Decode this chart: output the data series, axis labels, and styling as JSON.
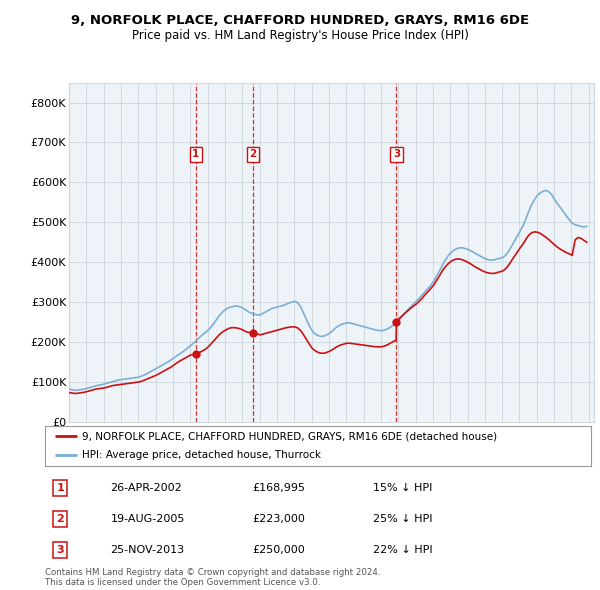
{
  "title": "9, NORFOLK PLACE, CHAFFORD HUNDRED, GRAYS, RM16 6DE",
  "subtitle": "Price paid vs. HM Land Registry's House Price Index (HPI)",
  "ylim": [
    0,
    850000
  ],
  "yticks": [
    0,
    100000,
    200000,
    300000,
    400000,
    500000,
    600000,
    700000,
    800000
  ],
  "ytick_labels": [
    "£0",
    "£100K",
    "£200K",
    "£300K",
    "£400K",
    "£500K",
    "£600K",
    "£700K",
    "£800K"
  ],
  "hpi_color": "#7bafd4",
  "price_color": "#cc1111",
  "vline_color": "#cc1111",
  "grid_color": "#d0d8e0",
  "chart_bg": "#eef3f8",
  "background_color": "#ffffff",
  "legend_label_price": "9, NORFOLK PLACE, CHAFFORD HUNDRED, GRAYS, RM16 6DE (detached house)",
  "legend_label_hpi": "HPI: Average price, detached house, Thurrock",
  "transactions": [
    {
      "id": 1,
      "date_label": "26-APR-2002",
      "x": 2002.32,
      "price": 168995,
      "pct": "15%"
    },
    {
      "id": 2,
      "date_label": "19-AUG-2005",
      "x": 2005.63,
      "price": 223000,
      "pct": "25%"
    },
    {
      "id": 3,
      "date_label": "25-NOV-2013",
      "x": 2013.9,
      "price": 250000,
      "pct": "22%"
    }
  ],
  "footer": "Contains HM Land Registry data © Crown copyright and database right 2024.\nThis data is licensed under the Open Government Licence v3.0.",
  "hpi_data_x": [
    1995.04,
    1995.21,
    1995.38,
    1995.54,
    1995.71,
    1995.88,
    1996.04,
    1996.21,
    1996.38,
    1996.54,
    1996.71,
    1996.88,
    1997.04,
    1997.21,
    1997.38,
    1997.54,
    1997.71,
    1997.88,
    1998.04,
    1998.21,
    1998.38,
    1998.54,
    1998.71,
    1998.88,
    1999.04,
    1999.21,
    1999.38,
    1999.54,
    1999.71,
    1999.88,
    2000.04,
    2000.21,
    2000.38,
    2000.54,
    2000.71,
    2000.88,
    2001.04,
    2001.21,
    2001.38,
    2001.54,
    2001.71,
    2001.88,
    2002.04,
    2002.21,
    2002.38,
    2002.54,
    2002.71,
    2002.88,
    2003.04,
    2003.21,
    2003.38,
    2003.54,
    2003.71,
    2003.88,
    2004.04,
    2004.21,
    2004.38,
    2004.54,
    2004.71,
    2004.88,
    2005.04,
    2005.21,
    2005.38,
    2005.54,
    2005.71,
    2005.88,
    2006.04,
    2006.21,
    2006.38,
    2006.54,
    2006.71,
    2006.88,
    2007.04,
    2007.21,
    2007.38,
    2007.54,
    2007.71,
    2007.88,
    2008.04,
    2008.21,
    2008.38,
    2008.54,
    2008.71,
    2008.88,
    2009.04,
    2009.21,
    2009.38,
    2009.54,
    2009.71,
    2009.88,
    2010.04,
    2010.21,
    2010.38,
    2010.54,
    2010.71,
    2010.88,
    2011.04,
    2011.21,
    2011.38,
    2011.54,
    2011.71,
    2011.88,
    2012.04,
    2012.21,
    2012.38,
    2012.54,
    2012.71,
    2012.88,
    2013.04,
    2013.21,
    2013.38,
    2013.54,
    2013.71,
    2013.88,
    2014.04,
    2014.21,
    2014.38,
    2014.54,
    2014.71,
    2014.88,
    2015.04,
    2015.21,
    2015.38,
    2015.54,
    2015.71,
    2015.88,
    2016.04,
    2016.21,
    2016.38,
    2016.54,
    2016.71,
    2016.88,
    2017.04,
    2017.21,
    2017.38,
    2017.54,
    2017.71,
    2017.88,
    2018.04,
    2018.21,
    2018.38,
    2018.54,
    2018.71,
    2018.88,
    2019.04,
    2019.21,
    2019.38,
    2019.54,
    2019.71,
    2019.88,
    2020.04,
    2020.21,
    2020.38,
    2020.54,
    2020.71,
    2020.88,
    2021.04,
    2021.21,
    2021.38,
    2021.54,
    2021.71,
    2021.88,
    2022.04,
    2022.21,
    2022.38,
    2022.54,
    2022.71,
    2022.88,
    2023.04,
    2023.21,
    2023.38,
    2023.54,
    2023.71,
    2023.88,
    2024.04,
    2024.21,
    2024.38,
    2024.54,
    2024.71,
    2024.88
  ],
  "hpi_data_y": [
    82000,
    80000,
    79000,
    80000,
    81000,
    82000,
    84000,
    86000,
    88000,
    90000,
    92000,
    93000,
    95000,
    97000,
    99000,
    101000,
    103000,
    105000,
    106000,
    107000,
    108000,
    109000,
    110000,
    111000,
    112000,
    115000,
    118000,
    122000,
    126000,
    130000,
    134000,
    138000,
    142000,
    146000,
    150000,
    155000,
    160000,
    165000,
    170000,
    175000,
    180000,
    186000,
    192000,
    198000,
    205000,
    212000,
    218000,
    224000,
    230000,
    238000,
    248000,
    258000,
    268000,
    276000,
    282000,
    286000,
    288000,
    290000,
    290000,
    288000,
    285000,
    280000,
    275000,
    272000,
    270000,
    268000,
    268000,
    272000,
    276000,
    280000,
    284000,
    286000,
    288000,
    290000,
    292000,
    295000,
    298000,
    300000,
    302000,
    298000,
    288000,
    272000,
    256000,
    240000,
    228000,
    220000,
    216000,
    214000,
    215000,
    218000,
    222000,
    228000,
    235000,
    240000,
    244000,
    246000,
    248000,
    248000,
    246000,
    244000,
    242000,
    240000,
    238000,
    236000,
    234000,
    232000,
    230000,
    229000,
    228000,
    230000,
    233000,
    237000,
    242000,
    248000,
    255000,
    263000,
    272000,
    280000,
    288000,
    295000,
    302000,
    310000,
    318000,
    326000,
    334000,
    342000,
    352000,
    365000,
    378000,
    392000,
    405000,
    416000,
    424000,
    430000,
    434000,
    436000,
    436000,
    434000,
    432000,
    428000,
    424000,
    420000,
    416000,
    412000,
    408000,
    406000,
    405000,
    406000,
    408000,
    410000,
    412000,
    418000,
    428000,
    440000,
    453000,
    466000,
    478000,
    492000,
    510000,
    528000,
    545000,
    558000,
    568000,
    574000,
    578000,
    580000,
    576000,
    568000,
    556000,
    545000,
    536000,
    526000,
    516000,
    506000,
    498000,
    494000,
    492000,
    490000,
    488000,
    490000
  ],
  "price_data_x": [
    1995.04,
    1995.21,
    1995.38,
    1995.54,
    1995.71,
    1995.88,
    1996.04,
    1996.21,
    1996.38,
    1996.54,
    1996.71,
    1996.88,
    1997.04,
    1997.21,
    1997.38,
    1997.54,
    1997.71,
    1997.88,
    1998.04,
    1998.21,
    1998.38,
    1998.54,
    1998.71,
    1998.88,
    1999.04,
    1999.21,
    1999.38,
    1999.54,
    1999.71,
    1999.88,
    2000.04,
    2000.21,
    2000.38,
    2000.54,
    2000.71,
    2000.88,
    2001.04,
    2001.21,
    2001.38,
    2001.54,
    2001.71,
    2001.88,
    2002.04,
    2002.21,
    2002.32,
    2002.38,
    2002.54,
    2002.71,
    2002.88,
    2003.04,
    2003.21,
    2003.38,
    2003.54,
    2003.71,
    2003.88,
    2004.04,
    2004.21,
    2004.38,
    2004.54,
    2004.71,
    2004.88,
    2005.04,
    2005.21,
    2005.38,
    2005.54,
    2005.63,
    2005.71,
    2005.88,
    2006.04,
    2006.21,
    2006.38,
    2006.54,
    2006.71,
    2006.88,
    2007.04,
    2007.21,
    2007.38,
    2007.54,
    2007.71,
    2007.88,
    2008.04,
    2008.21,
    2008.38,
    2008.54,
    2008.71,
    2008.88,
    2009.04,
    2009.21,
    2009.38,
    2009.54,
    2009.71,
    2009.88,
    2010.04,
    2010.21,
    2010.38,
    2010.54,
    2010.71,
    2010.88,
    2011.04,
    2011.21,
    2011.38,
    2011.54,
    2011.71,
    2011.88,
    2012.04,
    2012.21,
    2012.38,
    2012.54,
    2012.71,
    2012.88,
    2013.04,
    2013.21,
    2013.38,
    2013.54,
    2013.71,
    2013.88,
    2013.9,
    2014.04,
    2014.21,
    2014.38,
    2014.54,
    2014.71,
    2014.88,
    2015.04,
    2015.21,
    2015.38,
    2015.54,
    2015.71,
    2015.88,
    2016.04,
    2016.21,
    2016.38,
    2016.54,
    2016.71,
    2016.88,
    2017.04,
    2017.21,
    2017.38,
    2017.54,
    2017.71,
    2017.88,
    2018.04,
    2018.21,
    2018.38,
    2018.54,
    2018.71,
    2018.88,
    2019.04,
    2019.21,
    2019.38,
    2019.54,
    2019.71,
    2019.88,
    2020.04,
    2020.21,
    2020.38,
    2020.54,
    2020.71,
    2020.88,
    2021.04,
    2021.21,
    2021.38,
    2021.54,
    2021.71,
    2021.88,
    2022.04,
    2022.21,
    2022.38,
    2022.54,
    2022.71,
    2022.88,
    2023.04,
    2023.21,
    2023.38,
    2023.54,
    2023.71,
    2023.88,
    2024.04,
    2024.21,
    2024.38,
    2024.54,
    2024.71,
    2024.88
  ],
  "price_data_y": [
    73000,
    72000,
    71000,
    72000,
    73000,
    74000,
    76000,
    78000,
    80000,
    82000,
    83000,
    84000,
    85000,
    87000,
    89000,
    91000,
    92000,
    93000,
    94000,
    95000,
    96000,
    97000,
    98000,
    99000,
    100000,
    102000,
    105000,
    108000,
    111000,
    114000,
    117000,
    121000,
    125000,
    129000,
    133000,
    137000,
    142000,
    147000,
    152000,
    156000,
    160000,
    164000,
    168000,
    168500,
    168995,
    170000,
    174000,
    178000,
    182000,
    188000,
    196000,
    204000,
    212000,
    220000,
    226000,
    230000,
    234000,
    236000,
    236000,
    235000,
    233000,
    230000,
    226000,
    224000,
    223500,
    223000,
    222000,
    220000,
    218000,
    220000,
    222000,
    224000,
    226000,
    228000,
    230000,
    232000,
    234000,
    236000,
    237000,
    238000,
    238000,
    235000,
    228000,
    218000,
    206000,
    194000,
    184000,
    178000,
    174000,
    172000,
    172000,
    174000,
    177000,
    181000,
    186000,
    190000,
    193000,
    195000,
    197000,
    197000,
    196000,
    195000,
    194000,
    193000,
    192000,
    191000,
    190000,
    189000,
    188000,
    188000,
    188000,
    190000,
    193000,
    197000,
    201000,
    205000,
    250000,
    258000,
    265000,
    272000,
    278000,
    284000,
    290000,
    295000,
    302000,
    310000,
    318000,
    326000,
    334000,
    342000,
    354000,
    366000,
    378000,
    388000,
    396000,
    402000,
    406000,
    408000,
    408000,
    406000,
    403000,
    399000,
    395000,
    390000,
    386000,
    382000,
    378000,
    375000,
    373000,
    372000,
    372000,
    374000,
    376000,
    378000,
    384000,
    393000,
    404000,
    415000,
    426000,
    436000,
    446000,
    458000,
    468000,
    474000,
    476000,
    475000,
    472000,
    467000,
    462000,
    456000,
    449000,
    443000,
    437000,
    432000,
    428000,
    424000,
    421000,
    417000,
    456000,
    462000,
    460000,
    455000,
    450000
  ]
}
